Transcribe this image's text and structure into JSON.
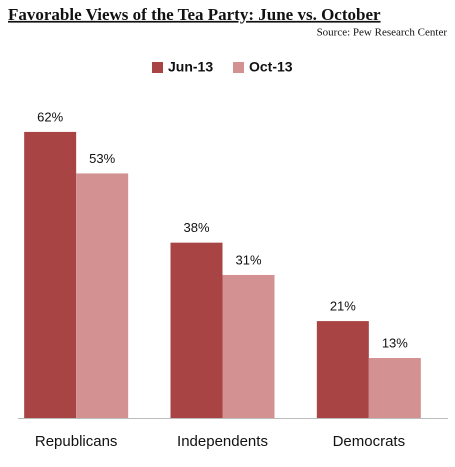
{
  "chart_data": {
    "type": "bar",
    "title": "Favorable Views of the Tea Party: June vs. October",
    "subtitle": "Source: Pew Research Center",
    "categories": [
      "Republicans",
      "Independents",
      "Democrats"
    ],
    "series": [
      {
        "name": "Jun-13",
        "color": "#a84444",
        "values": [
          62,
          38,
          21
        ],
        "value_labels": [
          "62%",
          "38%",
          "21%"
        ]
      },
      {
        "name": "Oct-13",
        "color": "#d49191",
        "values": [
          53,
          31,
          13
        ],
        "value_labels": [
          "53%",
          "31%",
          "13%"
        ]
      }
    ],
    "ylim": [
      0,
      70
    ],
    "legend": "top"
  }
}
